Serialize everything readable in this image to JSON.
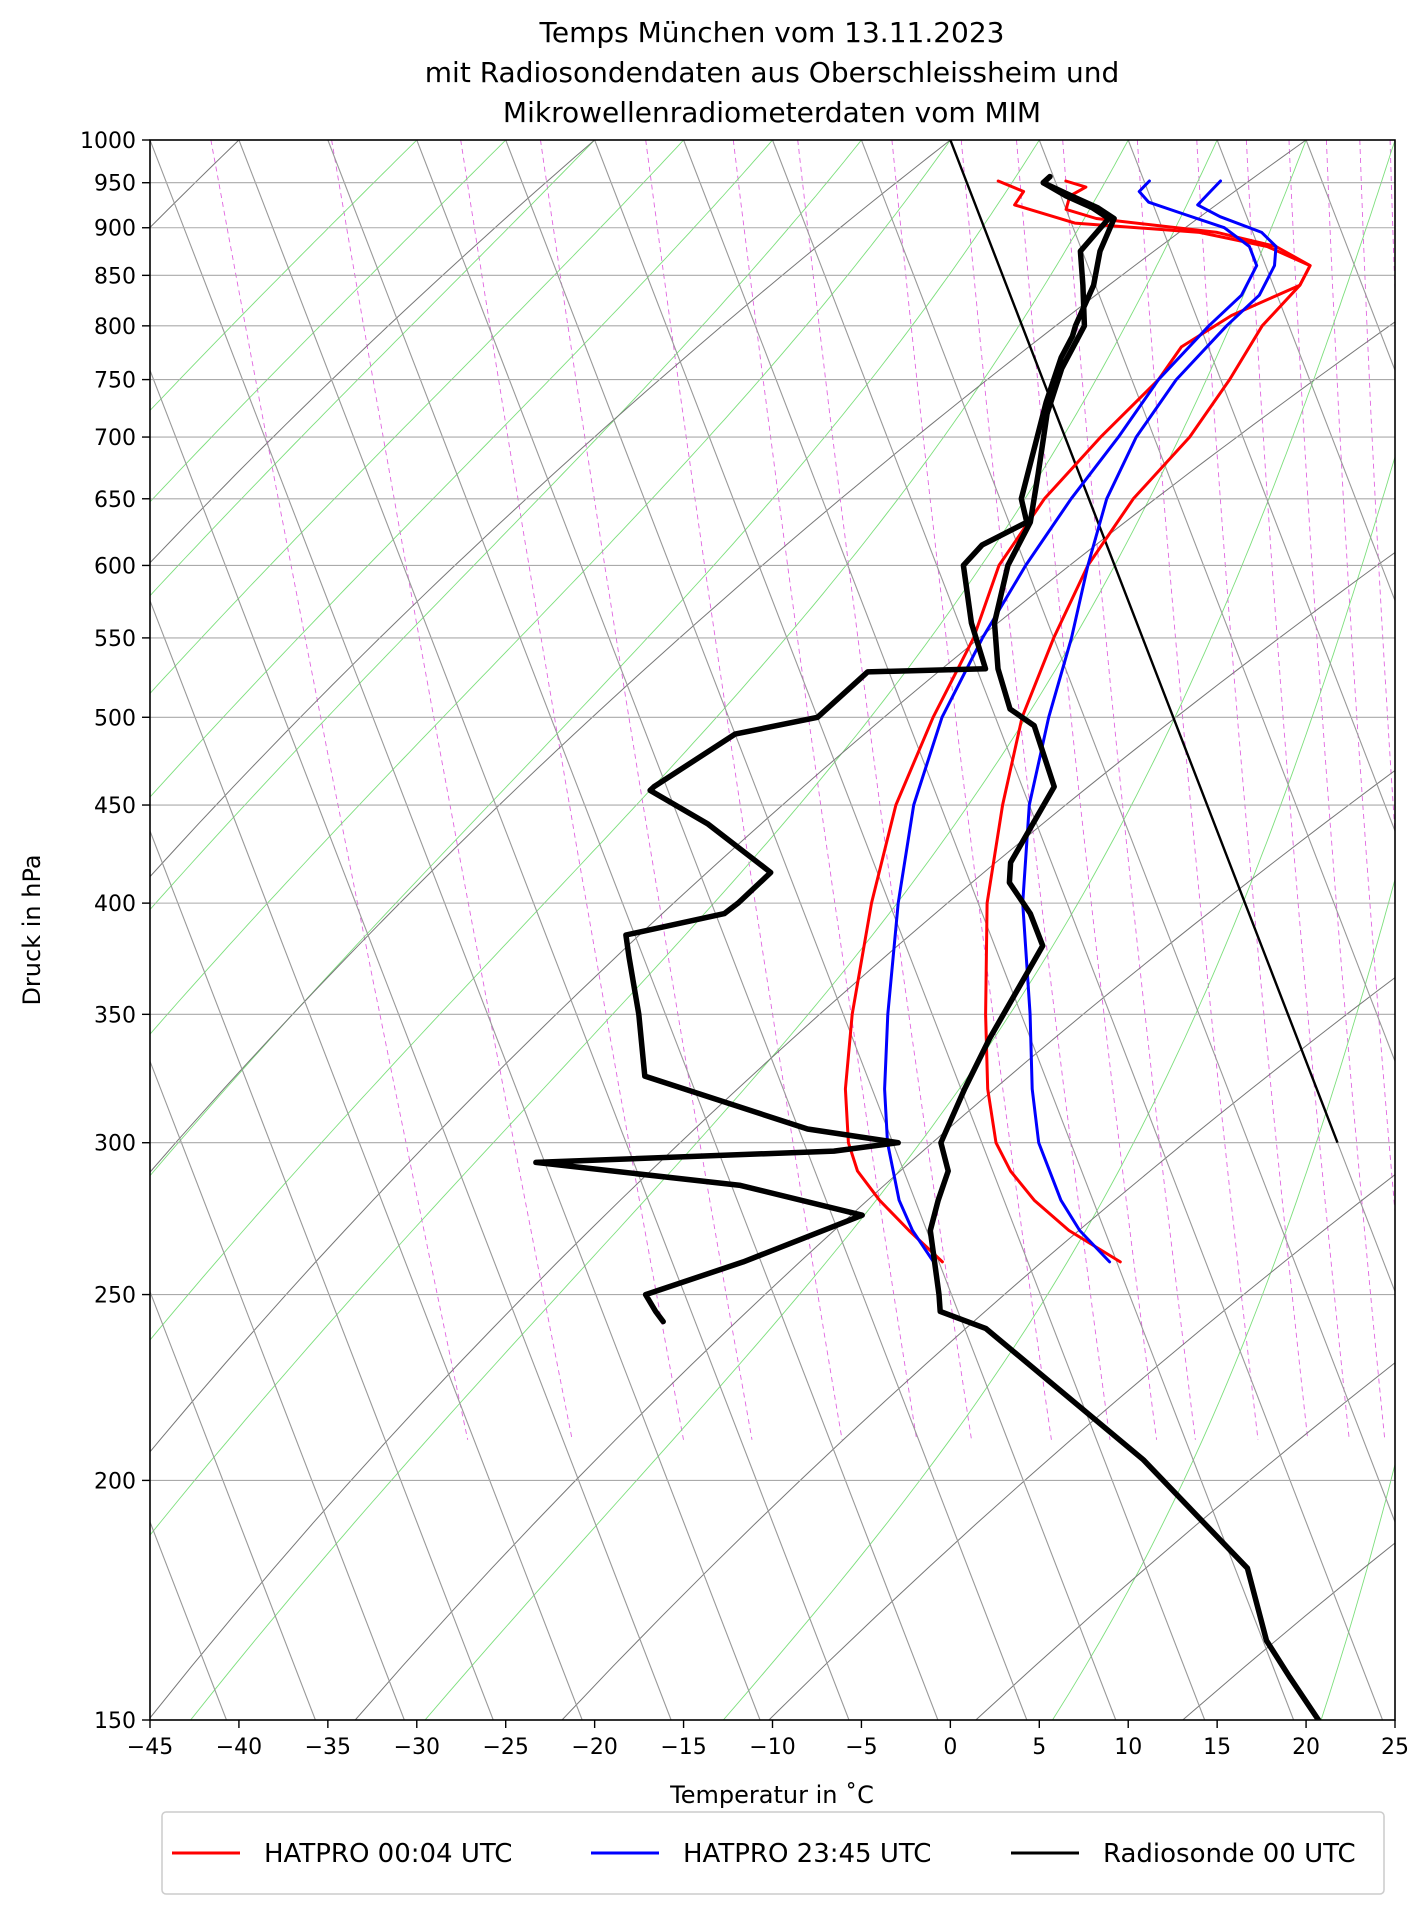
{
  "title_lines": [
    "Temps München vom 13.11.2023",
    "mit Radiosondendaten aus Oberschleissheim und",
    "Mikrowellenradiometerdaten vom MIM"
  ],
  "chart_data": {
    "type": "line",
    "subtype": "skew-T log-p diagram",
    "xlabel": "Temperatur in $^\\circ$C",
    "xlabel_display": "Temperatur in ˚C",
    "ylabel": "Druck in hPa",
    "xlim": [
      -45,
      25
    ],
    "ylim": [
      1000,
      150
    ],
    "y_scale": "log",
    "x_ticks": [
      "−45",
      "−40",
      "−35",
      "−30",
      "−25",
      "−20",
      "−15",
      "−10",
      "−5",
      "0",
      "5",
      "10",
      "15",
      "20",
      "25"
    ],
    "x_tick_values": [
      -45,
      -40,
      -35,
      -30,
      -25,
      -20,
      -15,
      -10,
      -5,
      0,
      5,
      10,
      15,
      20,
      25
    ],
    "y_ticks": [
      150,
      200,
      250,
      300,
      350,
      400,
      450,
      500,
      550,
      600,
      650,
      700,
      750,
      800,
      850,
      900,
      950,
      1000
    ],
    "y_tick_labels": [
      "150",
      "200",
      "250",
      "300",
      "350",
      "400",
      "450",
      "500",
      "550",
      "600",
      "650",
      "700",
      "750",
      "800",
      "850",
      "900",
      "950",
      "1000"
    ],
    "grid": true,
    "legend_position": "bottom",
    "colors": {
      "hatpro_0004": "#ff0000",
      "hatpro_2345": "#0000ff",
      "radiosonde": "#000000",
      "isotherm": "#999999",
      "dry_adiabat": "#777777",
      "moist_adiabat": "#7ddf7d",
      "mixing_ratio": "#e066e0"
    },
    "series": [
      {
        "name": "HATPRO 00:04 UTC",
        "key": "hatpro_0004",
        "temperature": [
          [
            952,
            1.8
          ],
          [
            940,
            3.0
          ],
          [
            925,
            2.2
          ],
          [
            905,
            5.2
          ],
          [
            895,
            12.0
          ],
          [
            880,
            15.5
          ],
          [
            860,
            17.5
          ],
          [
            840,
            16.5
          ],
          [
            810,
            12.0
          ],
          [
            780,
            8.5
          ],
          [
            750,
            6.5
          ],
          [
            700,
            2.0
          ],
          [
            650,
            -2.5
          ],
          [
            600,
            -6.5
          ],
          [
            550,
            -9.5
          ],
          [
            500,
            -13.5
          ],
          [
            450,
            -17.5
          ],
          [
            400,
            -21.0
          ],
          [
            350,
            -24.5
          ],
          [
            320,
            -26.5
          ],
          [
            300,
            -27.5
          ],
          [
            290,
            -27.6
          ],
          [
            280,
            -27.0
          ],
          [
            270,
            -26.0
          ],
          [
            260,
            -24.8
          ]
        ],
        "dewpoint": [
          [
            952,
            5.6
          ],
          [
            945,
            6.6
          ],
          [
            935,
            5.5
          ],
          [
            920,
            5.0
          ],
          [
            910,
            6.5
          ],
          [
            895,
            13.0
          ],
          [
            880,
            16.0
          ],
          [
            860,
            17.5
          ],
          [
            840,
            16.5
          ],
          [
            800,
            13.5
          ],
          [
            750,
            10.5
          ],
          [
            700,
            7.0
          ],
          [
            650,
            2.5
          ],
          [
            600,
            -1.5
          ],
          [
            550,
            -5.0
          ],
          [
            500,
            -8.5
          ],
          [
            450,
            -11.5
          ],
          [
            400,
            -14.5
          ],
          [
            350,
            -17.0
          ],
          [
            320,
            -18.5
          ],
          [
            300,
            -19.2
          ],
          [
            290,
            -19.0
          ],
          [
            280,
            -18.3
          ],
          [
            270,
            -17.0
          ],
          [
            260,
            -14.8
          ]
        ]
      },
      {
        "name": "HATPRO 23:45 UTC",
        "key": "hatpro_2345",
        "temperature": [
          [
            952,
            10.3
          ],
          [
            940,
            9.5
          ],
          [
            928,
            9.8
          ],
          [
            915,
            11.5
          ],
          [
            900,
            13.5
          ],
          [
            880,
            14.5
          ],
          [
            860,
            14.5
          ],
          [
            830,
            13.0
          ],
          [
            800,
            10.5
          ],
          [
            750,
            6.5
          ],
          [
            700,
            3.0
          ],
          [
            650,
            -1.0
          ],
          [
            600,
            -5.0
          ],
          [
            550,
            -9.0
          ],
          [
            500,
            -13.0
          ],
          [
            450,
            -16.5
          ],
          [
            400,
            -19.5
          ],
          [
            350,
            -22.5
          ],
          [
            320,
            -24.3
          ],
          [
            300,
            -25.3
          ],
          [
            280,
            -25.9
          ],
          [
            270,
            -25.8
          ],
          [
            260,
            -25.3
          ]
        ],
        "dewpoint": [
          [
            952,
            14.3
          ],
          [
            940,
            13.5
          ],
          [
            925,
            12.5
          ],
          [
            912,
            13.5
          ],
          [
            895,
            15.5
          ],
          [
            880,
            16.0
          ],
          [
            860,
            15.5
          ],
          [
            830,
            14.0
          ],
          [
            800,
            11.5
          ],
          [
            750,
            7.5
          ],
          [
            700,
            4.0
          ],
          [
            650,
            1.0
          ],
          [
            600,
            -1.5
          ],
          [
            550,
            -4.0
          ],
          [
            500,
            -7.0
          ],
          [
            450,
            -10.0
          ],
          [
            400,
            -12.5
          ],
          [
            350,
            -14.5
          ],
          [
            320,
            -16.0
          ],
          [
            300,
            -16.8
          ],
          [
            280,
            -16.8
          ],
          [
            270,
            -16.4
          ],
          [
            260,
            -15.4
          ]
        ]
      },
      {
        "name": "Radiosonde 00 UTC",
        "key": "radiosonde",
        "temperature": [
          [
            957,
            4.8
          ],
          [
            950,
            4.3
          ],
          [
            935,
            5.3
          ],
          [
            922,
            6.5
          ],
          [
            910,
            7.2
          ],
          [
            875,
            4.9
          ],
          [
            840,
            4.3
          ],
          [
            800,
            3.5
          ],
          [
            760,
            1.3
          ],
          [
            720,
            -0.5
          ],
          [
            670,
            -2.3
          ],
          [
            632,
            -3.8
          ],
          [
            600,
            -6.0
          ],
          [
            560,
            -8.0
          ],
          [
            530,
            -8.8
          ],
          [
            505,
            -9.0
          ],
          [
            495,
            -8.0
          ],
          [
            460,
            -8.2
          ],
          [
            420,
            -12.3
          ],
          [
            410,
            -12.8
          ],
          [
            395,
            -12.3
          ],
          [
            380,
            -12.3
          ],
          [
            340,
            -17.3
          ],
          [
            320,
            -19.8
          ],
          [
            300,
            -22.3
          ],
          [
            290,
            -22.5
          ],
          [
            280,
            -23.7
          ],
          [
            270,
            -24.8
          ],
          [
            250,
            -25.7
          ],
          [
            245,
            -26.0
          ],
          [
            240,
            -23.8
          ],
          [
            205,
            -17.8
          ],
          [
            180,
            -14.3
          ],
          [
            165,
            -14.8
          ],
          [
            158,
            -14.3
          ],
          [
            150,
            -13.6
          ]
        ],
        "dewpoint": [
          [
            957,
            4.8
          ],
          [
            950,
            4.3
          ],
          [
            935,
            5.6
          ],
          [
            922,
            6.8
          ],
          [
            910,
            7.5
          ],
          [
            875,
            6.0
          ],
          [
            840,
            4.9
          ],
          [
            800,
            3.0
          ],
          [
            790,
            2.6
          ],
          [
            770,
            1.5
          ],
          [
            730,
            -0.3
          ],
          [
            690,
            -2.0
          ],
          [
            650,
            -3.8
          ],
          [
            632,
            -4.0
          ],
          [
            615,
            -7.0
          ],
          [
            600,
            -8.5
          ],
          [
            560,
            -9.3
          ],
          [
            530,
            -9.5
          ],
          [
            528,
            -16.2
          ],
          [
            500,
            -20.0
          ],
          [
            490,
            -25.0
          ],
          [
            460,
            -30.7
          ],
          [
            458,
            -31.0
          ],
          [
            440,
            -28.5
          ],
          [
            415,
            -26.0
          ],
          [
            400,
            -28.5
          ],
          [
            395,
            -29.5
          ],
          [
            385,
            -35.5
          ],
          [
            375,
            -35.8
          ],
          [
            350,
            -36.5
          ],
          [
            325,
            -37.5
          ],
          [
            305,
            -29.5
          ],
          [
            300,
            -24.7
          ],
          [
            297,
            -28.5
          ],
          [
            293,
            -45.5
          ],
          [
            285,
            -34.5
          ],
          [
            275,
            -28.3
          ],
          [
            260,
            -36.0
          ],
          [
            250,
            -42.2
          ],
          [
            245,
            -42.0
          ],
          [
            242,
            -41.8
          ]
        ]
      }
    ],
    "background_lines": [
      "isotherms",
      "isobars",
      "dry adiabats",
      "moist adiabats",
      "mixing ratio lines"
    ]
  }
}
